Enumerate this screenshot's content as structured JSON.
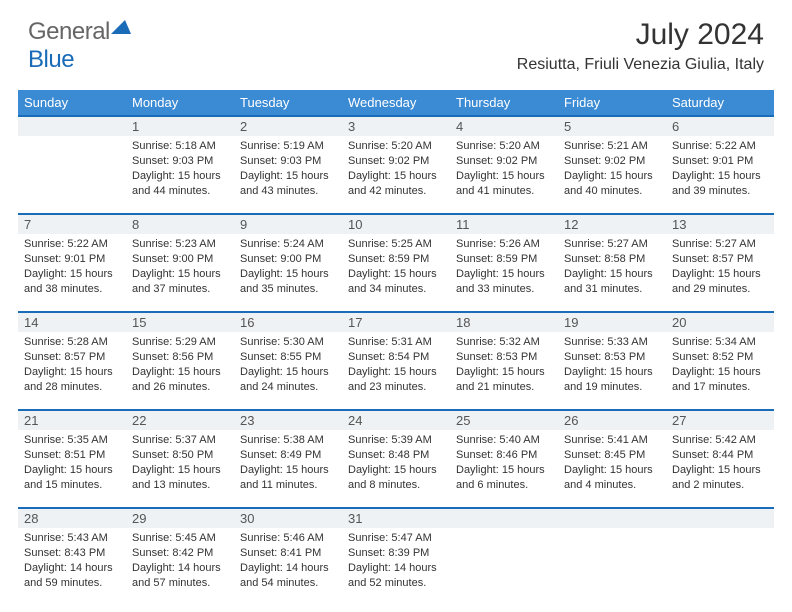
{
  "logo": {
    "part1": "General",
    "part2": "Blue"
  },
  "title": "July 2024",
  "location": "Resiutta, Friuli Venezia Giulia, Italy",
  "colors": {
    "header_bg": "#3b8bd4",
    "header_text": "#ffffff",
    "rule": "#1a6bb8",
    "daynum_bg": "#eef2f5",
    "text": "#333333",
    "logo_gray": "#666666",
    "logo_blue": "#1a6bb8",
    "page_bg": "#ffffff"
  },
  "fonts": {
    "title_size": 30,
    "location_size": 16,
    "header_size": 13,
    "daynum_size": 13,
    "cell_size": 11
  },
  "weekdays": [
    "Sunday",
    "Monday",
    "Tuesday",
    "Wednesday",
    "Thursday",
    "Friday",
    "Saturday"
  ],
  "weeks": [
    {
      "nums": [
        "",
        "1",
        "2",
        "3",
        "4",
        "5",
        "6"
      ],
      "cells": [
        {
          "lines": []
        },
        {
          "lines": [
            "Sunrise: 5:18 AM",
            "Sunset: 9:03 PM",
            "Daylight: 15 hours",
            "and 44 minutes."
          ]
        },
        {
          "lines": [
            "Sunrise: 5:19 AM",
            "Sunset: 9:03 PM",
            "Daylight: 15 hours",
            "and 43 minutes."
          ]
        },
        {
          "lines": [
            "Sunrise: 5:20 AM",
            "Sunset: 9:02 PM",
            "Daylight: 15 hours",
            "and 42 minutes."
          ]
        },
        {
          "lines": [
            "Sunrise: 5:20 AM",
            "Sunset: 9:02 PM",
            "Daylight: 15 hours",
            "and 41 minutes."
          ]
        },
        {
          "lines": [
            "Sunrise: 5:21 AM",
            "Sunset: 9:02 PM",
            "Daylight: 15 hours",
            "and 40 minutes."
          ]
        },
        {
          "lines": [
            "Sunrise: 5:22 AM",
            "Sunset: 9:01 PM",
            "Daylight: 15 hours",
            "and 39 minutes."
          ]
        }
      ]
    },
    {
      "nums": [
        "7",
        "8",
        "9",
        "10",
        "11",
        "12",
        "13"
      ],
      "cells": [
        {
          "lines": [
            "Sunrise: 5:22 AM",
            "Sunset: 9:01 PM",
            "Daylight: 15 hours",
            "and 38 minutes."
          ]
        },
        {
          "lines": [
            "Sunrise: 5:23 AM",
            "Sunset: 9:00 PM",
            "Daylight: 15 hours",
            "and 37 minutes."
          ]
        },
        {
          "lines": [
            "Sunrise: 5:24 AM",
            "Sunset: 9:00 PM",
            "Daylight: 15 hours",
            "and 35 minutes."
          ]
        },
        {
          "lines": [
            "Sunrise: 5:25 AM",
            "Sunset: 8:59 PM",
            "Daylight: 15 hours",
            "and 34 minutes."
          ]
        },
        {
          "lines": [
            "Sunrise: 5:26 AM",
            "Sunset: 8:59 PM",
            "Daylight: 15 hours",
            "and 33 minutes."
          ]
        },
        {
          "lines": [
            "Sunrise: 5:27 AM",
            "Sunset: 8:58 PM",
            "Daylight: 15 hours",
            "and 31 minutes."
          ]
        },
        {
          "lines": [
            "Sunrise: 5:27 AM",
            "Sunset: 8:57 PM",
            "Daylight: 15 hours",
            "and 29 minutes."
          ]
        }
      ]
    },
    {
      "nums": [
        "14",
        "15",
        "16",
        "17",
        "18",
        "19",
        "20"
      ],
      "cells": [
        {
          "lines": [
            "Sunrise: 5:28 AM",
            "Sunset: 8:57 PM",
            "Daylight: 15 hours",
            "and 28 minutes."
          ]
        },
        {
          "lines": [
            "Sunrise: 5:29 AM",
            "Sunset: 8:56 PM",
            "Daylight: 15 hours",
            "and 26 minutes."
          ]
        },
        {
          "lines": [
            "Sunrise: 5:30 AM",
            "Sunset: 8:55 PM",
            "Daylight: 15 hours",
            "and 24 minutes."
          ]
        },
        {
          "lines": [
            "Sunrise: 5:31 AM",
            "Sunset: 8:54 PM",
            "Daylight: 15 hours",
            "and 23 minutes."
          ]
        },
        {
          "lines": [
            "Sunrise: 5:32 AM",
            "Sunset: 8:53 PM",
            "Daylight: 15 hours",
            "and 21 minutes."
          ]
        },
        {
          "lines": [
            "Sunrise: 5:33 AM",
            "Sunset: 8:53 PM",
            "Daylight: 15 hours",
            "and 19 minutes."
          ]
        },
        {
          "lines": [
            "Sunrise: 5:34 AM",
            "Sunset: 8:52 PM",
            "Daylight: 15 hours",
            "and 17 minutes."
          ]
        }
      ]
    },
    {
      "nums": [
        "21",
        "22",
        "23",
        "24",
        "25",
        "26",
        "27"
      ],
      "cells": [
        {
          "lines": [
            "Sunrise: 5:35 AM",
            "Sunset: 8:51 PM",
            "Daylight: 15 hours",
            "and 15 minutes."
          ]
        },
        {
          "lines": [
            "Sunrise: 5:37 AM",
            "Sunset: 8:50 PM",
            "Daylight: 15 hours",
            "and 13 minutes."
          ]
        },
        {
          "lines": [
            "Sunrise: 5:38 AM",
            "Sunset: 8:49 PM",
            "Daylight: 15 hours",
            "and 11 minutes."
          ]
        },
        {
          "lines": [
            "Sunrise: 5:39 AM",
            "Sunset: 8:48 PM",
            "Daylight: 15 hours",
            "and 8 minutes."
          ]
        },
        {
          "lines": [
            "Sunrise: 5:40 AM",
            "Sunset: 8:46 PM",
            "Daylight: 15 hours",
            "and 6 minutes."
          ]
        },
        {
          "lines": [
            "Sunrise: 5:41 AM",
            "Sunset: 8:45 PM",
            "Daylight: 15 hours",
            "and 4 minutes."
          ]
        },
        {
          "lines": [
            "Sunrise: 5:42 AM",
            "Sunset: 8:44 PM",
            "Daylight: 15 hours",
            "and 2 minutes."
          ]
        }
      ]
    },
    {
      "nums": [
        "28",
        "29",
        "30",
        "31",
        "",
        "",
        ""
      ],
      "cells": [
        {
          "lines": [
            "Sunrise: 5:43 AM",
            "Sunset: 8:43 PM",
            "Daylight: 14 hours",
            "and 59 minutes."
          ]
        },
        {
          "lines": [
            "Sunrise: 5:45 AM",
            "Sunset: 8:42 PM",
            "Daylight: 14 hours",
            "and 57 minutes."
          ]
        },
        {
          "lines": [
            "Sunrise: 5:46 AM",
            "Sunset: 8:41 PM",
            "Daylight: 14 hours",
            "and 54 minutes."
          ]
        },
        {
          "lines": [
            "Sunrise: 5:47 AM",
            "Sunset: 8:39 PM",
            "Daylight: 14 hours",
            "and 52 minutes."
          ]
        },
        {
          "lines": []
        },
        {
          "lines": []
        },
        {
          "lines": []
        }
      ]
    }
  ]
}
